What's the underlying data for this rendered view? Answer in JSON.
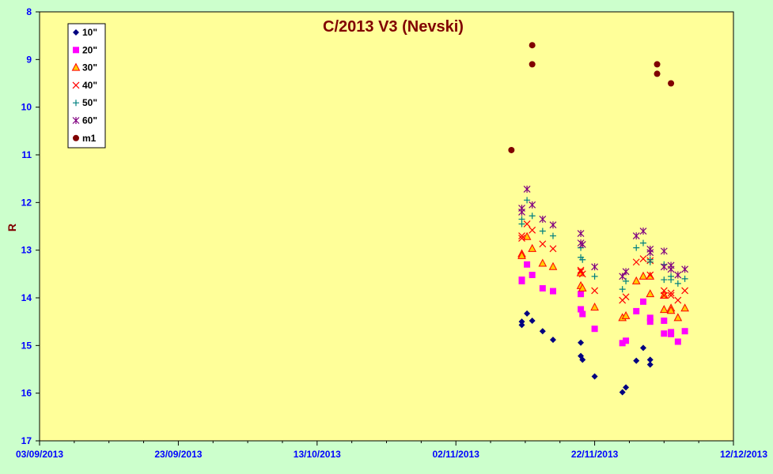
{
  "chart_data": {
    "type": "scatter",
    "title": "C/2013 V3 (Nevski)",
    "xlabel": "",
    "ylabel": "R",
    "x_ticks": [
      "03/09/2013",
      "23/09/2013",
      "13/10/2013",
      "02/11/2013",
      "22/11/2013",
      "12/12/2013"
    ],
    "xlim": [
      "2013-09-03",
      "2013-12-12"
    ],
    "ylim": [
      8,
      17
    ],
    "y_inverted": true,
    "y_ticks": [
      "8",
      "9",
      "10",
      "11",
      "12",
      "13",
      "14",
      "15",
      "16",
      "17"
    ],
    "grid": false,
    "legend_position": "top-left",
    "plot_background": "#ffff99",
    "page_background": "#ccffcc",
    "series": [
      {
        "name": "10\"",
        "marker": "diamond",
        "color": "#000080",
        "points": [
          [
            "2013-11-11T12:00",
            14.5
          ],
          [
            "2013-11-11T12:00",
            14.57
          ],
          [
            "2013-11-12T06:00",
            14.33
          ],
          [
            "2013-11-13T00:00",
            14.48
          ],
          [
            "2013-11-14T12:00",
            14.7
          ],
          [
            "2013-11-16T00:00",
            14.88
          ],
          [
            "2013-11-20T00:00",
            14.94
          ],
          [
            "2013-11-20T00:00",
            15.22
          ],
          [
            "2013-11-20T06:00",
            15.3
          ],
          [
            "2013-11-22T00:00",
            15.65
          ],
          [
            "2013-11-26T00:00",
            15.98
          ],
          [
            "2013-11-26T12:00",
            15.88
          ],
          [
            "2013-11-28T00:00",
            15.32
          ],
          [
            "2013-11-29T00:00",
            15.05
          ],
          [
            "2013-11-30T00:00",
            15.3
          ],
          [
            "2013-11-30T00:00",
            15.4
          ]
        ]
      },
      {
        "name": "20\"",
        "marker": "square",
        "color": "#ff00ff",
        "points": [
          [
            "2013-11-11T12:00",
            13.62
          ],
          [
            "2013-11-11T12:00",
            13.65
          ],
          [
            "2013-11-12T06:00",
            13.3
          ],
          [
            "2013-11-13T00:00",
            13.52
          ],
          [
            "2013-11-14T12:00",
            13.8
          ],
          [
            "2013-11-16T00:00",
            13.86
          ],
          [
            "2013-11-20T00:00",
            13.92
          ],
          [
            "2013-11-20T00:00",
            14.24
          ],
          [
            "2013-11-20T06:00",
            14.34
          ],
          [
            "2013-11-22T00:00",
            14.65
          ],
          [
            "2013-11-26T00:00",
            14.95
          ],
          [
            "2013-11-26T12:00",
            14.9
          ],
          [
            "2013-11-28T00:00",
            14.28
          ],
          [
            "2013-11-29T00:00",
            14.08
          ],
          [
            "2013-11-30T00:00",
            14.42
          ],
          [
            "2013-11-30T00:00",
            14.5
          ],
          [
            "2013-12-02T00:00",
            14.48
          ],
          [
            "2013-12-02T00:00",
            14.75
          ],
          [
            "2013-12-03T00:00",
            14.72
          ],
          [
            "2013-12-03T00:00",
            14.76
          ],
          [
            "2013-12-04T00:00",
            14.92
          ],
          [
            "2013-12-05T00:00",
            14.7
          ]
        ]
      },
      {
        "name": "30\"",
        "marker": "triangle",
        "color": "#ff0000",
        "fill": "#ffcc00",
        "points": [
          [
            "2013-11-11T12:00",
            13.08
          ],
          [
            "2013-11-11T12:00",
            13.12
          ],
          [
            "2013-11-12T06:00",
            12.72
          ],
          [
            "2013-11-13T00:00",
            12.97
          ],
          [
            "2013-11-14T12:00",
            13.28
          ],
          [
            "2013-11-16T00:00",
            13.35
          ],
          [
            "2013-11-20T00:00",
            13.48
          ],
          [
            "2013-11-20T00:00",
            13.75
          ],
          [
            "2013-11-20T06:00",
            13.8
          ],
          [
            "2013-11-22T00:00",
            14.2
          ],
          [
            "2013-11-26T00:00",
            14.42
          ],
          [
            "2013-11-26T12:00",
            14.38
          ],
          [
            "2013-11-28T00:00",
            13.65
          ],
          [
            "2013-11-29T00:00",
            13.55
          ],
          [
            "2013-11-30T00:00",
            13.55
          ],
          [
            "2013-11-30T00:00",
            13.92
          ],
          [
            "2013-12-02T00:00",
            13.95
          ],
          [
            "2013-12-02T00:00",
            14.25
          ],
          [
            "2013-12-03T00:00",
            14.22
          ],
          [
            "2013-12-03T00:00",
            14.27
          ],
          [
            "2013-12-04T00:00",
            14.42
          ],
          [
            "2013-12-05T00:00",
            14.22
          ]
        ]
      },
      {
        "name": "40\"",
        "marker": "x",
        "color": "#ff0000",
        "points": [
          [
            "2013-11-11T12:00",
            12.7
          ],
          [
            "2013-11-11T12:00",
            12.75
          ],
          [
            "2013-11-12T06:00",
            12.45
          ],
          [
            "2013-11-13T00:00",
            12.58
          ],
          [
            "2013-11-14T12:00",
            12.87
          ],
          [
            "2013-11-16T00:00",
            12.97
          ],
          [
            "2013-11-20T00:00",
            13.42
          ],
          [
            "2013-11-20T00:00",
            13.45
          ],
          [
            "2013-11-20T06:00",
            13.5
          ],
          [
            "2013-11-22T00:00",
            13.85
          ],
          [
            "2013-11-26T00:00",
            14.05
          ],
          [
            "2013-11-26T12:00",
            13.98
          ],
          [
            "2013-11-28T00:00",
            13.25
          ],
          [
            "2013-11-29T00:00",
            13.18
          ],
          [
            "2013-11-30T00:00",
            13.22
          ],
          [
            "2013-11-30T00:00",
            13.52
          ],
          [
            "2013-12-02T00:00",
            13.85
          ],
          [
            "2013-12-02T00:00",
            13.95
          ],
          [
            "2013-12-03T00:00",
            13.9
          ],
          [
            "2013-12-03T00:00",
            13.95
          ],
          [
            "2013-12-04T00:00",
            14.05
          ],
          [
            "2013-12-05T00:00",
            13.85
          ]
        ]
      },
      {
        "name": "50\"",
        "marker": "plus",
        "color": "#008080",
        "points": [
          [
            "2013-11-11T12:00",
            12.35
          ],
          [
            "2013-11-11T12:00",
            12.45
          ],
          [
            "2013-11-12T06:00",
            11.95
          ],
          [
            "2013-11-13T00:00",
            12.28
          ],
          [
            "2013-11-14T12:00",
            12.6
          ],
          [
            "2013-11-16T00:00",
            12.7
          ],
          [
            "2013-11-20T00:00",
            12.95
          ],
          [
            "2013-11-20T00:00",
            13.15
          ],
          [
            "2013-11-20T06:00",
            13.2
          ],
          [
            "2013-11-22T00:00",
            13.55
          ],
          [
            "2013-11-26T00:00",
            13.82
          ],
          [
            "2013-11-26T12:00",
            13.65
          ],
          [
            "2013-11-28T00:00",
            12.95
          ],
          [
            "2013-11-29T00:00",
            12.85
          ],
          [
            "2013-11-30T00:00",
            13.2
          ],
          [
            "2013-11-30T00:00",
            13.25
          ],
          [
            "2013-12-02T00:00",
            13.3
          ],
          [
            "2013-12-02T00:00",
            13.62
          ],
          [
            "2013-12-03T00:00",
            13.55
          ],
          [
            "2013-12-03T00:00",
            13.62
          ],
          [
            "2013-12-04T00:00",
            13.7
          ],
          [
            "2013-12-05T00:00",
            13.6
          ]
        ]
      },
      {
        "name": "60\"",
        "marker": "star",
        "color": "#800080",
        "points": [
          [
            "2013-11-11T12:00",
            12.12
          ],
          [
            "2013-11-11T12:00",
            12.2
          ],
          [
            "2013-11-12T06:00",
            11.72
          ],
          [
            "2013-11-13T00:00",
            12.05
          ],
          [
            "2013-11-14T12:00",
            12.35
          ],
          [
            "2013-11-16T00:00",
            12.47
          ],
          [
            "2013-11-20T00:00",
            12.65
          ],
          [
            "2013-11-20T00:00",
            12.85
          ],
          [
            "2013-11-20T06:00",
            12.88
          ],
          [
            "2013-11-22T00:00",
            13.35
          ],
          [
            "2013-11-26T00:00",
            13.55
          ],
          [
            "2013-11-26T12:00",
            13.45
          ],
          [
            "2013-11-28T00:00",
            12.7
          ],
          [
            "2013-11-29T00:00",
            12.6
          ],
          [
            "2013-11-30T00:00",
            12.98
          ],
          [
            "2013-11-30T00:00",
            13.05
          ],
          [
            "2013-12-02T00:00",
            13.02
          ],
          [
            "2013-12-02T00:00",
            13.35
          ],
          [
            "2013-12-03T00:00",
            13.32
          ],
          [
            "2013-12-03T00:00",
            13.4
          ],
          [
            "2013-12-04T00:00",
            13.52
          ],
          [
            "2013-12-05T00:00",
            13.4
          ]
        ]
      },
      {
        "name": "m1",
        "marker": "circle",
        "color": "#800000",
        "points": [
          [
            "2013-11-10T00:00",
            10.9
          ],
          [
            "2013-11-13T00:00",
            8.7
          ],
          [
            "2013-11-13T00:00",
            9.1
          ],
          [
            "2013-12-01T00:00",
            9.1
          ],
          [
            "2013-12-01T00:00",
            9.3
          ],
          [
            "2013-12-03T00:00",
            9.5
          ]
        ]
      }
    ]
  }
}
